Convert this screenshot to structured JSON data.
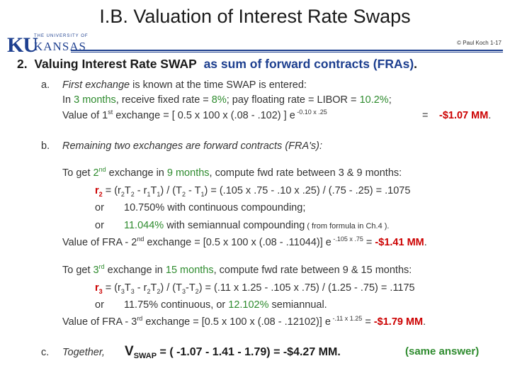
{
  "title": "I.B.  Valuation of Interest Rate Swaps",
  "logo": {
    "top": "THE UNIVERSITY OF",
    "mark": "KU",
    "name": "KANSAS"
  },
  "copyright": "© Paul Koch 1-17",
  "heading": {
    "num": "2.",
    "pre": "Valuing  Interest Rate SWAP",
    "hl": "as sum of   forward contracts  (FRAs)",
    "end": "."
  },
  "a": {
    "marker": "a.",
    "l1_i": "First exchange",
    "l1_rest": " is known at the time SWAP is entered:",
    "l2_pre": "In ",
    "l2_months": "3 months",
    "l2_mid": ",  receive  fixed rate = ",
    "l2_fixed": "8%",
    "l2_mid2": ";   pay  floating rate = LIBOR = ",
    "l2_float": "10.2%",
    "l2_end": ";",
    "l3_pre": "Value of 1",
    "l3_sup": "st",
    "l3_mid": " exchange  =  [ 0.5 x 100 x (.08 - .102) ] e",
    "l3_exp": " -0.10 x .25",
    "l3_eq": "=",
    "l3_val": "-$1.07 MM",
    "l3_end": "."
  },
  "b": {
    "marker": "b.",
    "intro": "Remaining two exchanges   are  forward contracts  (FRA's):",
    "s1": {
      "l1_pre": "To get  ",
      "l1_n": "2",
      "l1_sup": "nd",
      "l1_mid": " exchange in ",
      "l1_months": "9 months",
      "l1_rest": ", compute  fwd rate  between  3 & 9 months:",
      "r": "r",
      "r_sub": "2",
      "eq": "  =  (r",
      "a_sub": "2",
      "t": "T",
      "t_sub": "2",
      "m1": " - r",
      "b_sub": "1",
      "t2": "T",
      "t2_sub": "1",
      "m2": ") / (T",
      "c_sub": "2",
      "m3": " - T",
      "d_sub": "1",
      "m4": ") = (.105 x .75 - .10 x .25) / (.75 - .25) = .1075",
      "or1": "or",
      "cont": "10.750%  with continuous compounding;",
      "or2": "or",
      "semi_val": "11.044%",
      "semi_rest": "  with semiannual compounding",
      "semi_note": "  ( from formula in Ch.4 ).",
      "val_pre": "Value of FRA - 2",
      "val_sup": "nd",
      "val_mid": " exchange =  [0.5 x 100 x (.08 - .11044)] e",
      "val_exp": " -.105 x .75",
      "val_eq": " =  ",
      "val": "-$1.41 MM",
      "val_end": "."
    },
    "s2": {
      "l1_pre": "To get  ",
      "l1_n": "3",
      "l1_sup": "rd",
      "l1_mid": " exchange in ",
      "l1_months": "15 months",
      "l1_rest": ", compute fwd rate  between  9 & 15 months:",
      "r": "r",
      "r_sub": "3",
      "eq": "  =  (r",
      "a_sub": "3",
      "t": "T",
      "t_sub": "3",
      "m1": " - r",
      "b_sub": "2",
      "t2": "T",
      "t2_sub": "2",
      "m2": ") / (T",
      "c_sub": "3",
      "m3": "-T",
      "d_sub": "2",
      "m4": ") = (.11 x 1.25 - .105 x .75) / (1.25 - .75) = .1175",
      "or1": "or",
      "cont_pre": "11.75% continuous,  or ",
      "cont_val": "12.102%",
      "cont_end": " semiannual.",
      "val_pre": "Value of FRA - 3",
      "val_sup": "rd",
      "val_mid": " exchange =  [0.5 x 100 x (.08 - .12102)] e",
      "val_exp": " -.11 x 1.25",
      "val_eq": " =  ",
      "val": "-$1.79 MM",
      "val_end": "."
    }
  },
  "c": {
    "marker": "c.",
    "label": "Together,",
    "v": "V",
    "v_sub": "SWAP",
    "eq": "  =  ( -1.07  -  1.41  -  1.79)  =  -$4.27 MM.",
    "note": "(same answer)"
  }
}
